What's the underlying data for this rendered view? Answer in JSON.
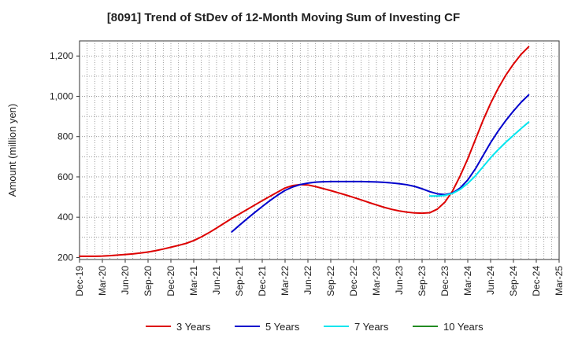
{
  "chart_data": {
    "type": "line",
    "title": "[8091]  Trend of StDev of 12-Month Moving Sum of Investing CF",
    "ylabel": "Amount (million yen)",
    "xlabel": "",
    "ylim": [
      190,
      1275
    ],
    "yticks": [
      200,
      400,
      600,
      800,
      1000,
      1200
    ],
    "ytick_labels": [
      "200",
      "400",
      "600",
      "800",
      "1,000",
      "1,200"
    ],
    "x_ticks": [
      "Dec-19",
      "Mar-20",
      "Jun-20",
      "Sep-20",
      "Dec-20",
      "Mar-21",
      "Jun-21",
      "Sep-21",
      "Dec-21",
      "Mar-22",
      "Jun-22",
      "Sep-22",
      "Dec-22",
      "Mar-23",
      "Jun-23",
      "Sep-23",
      "Dec-23",
      "Mar-24",
      "Jun-24",
      "Sep-24",
      "Dec-24",
      "Mar-25"
    ],
    "grid": true,
    "legend_position": "bottom",
    "series": [
      {
        "name": "3 Years",
        "color": "#dd0000",
        "points": [
          [
            0,
            206
          ],
          [
            1,
            206
          ],
          [
            2,
            206
          ],
          [
            3,
            207
          ],
          [
            4,
            209
          ],
          [
            5,
            212
          ],
          [
            6,
            215
          ],
          [
            7,
            218
          ],
          [
            8,
            222
          ],
          [
            9,
            227
          ],
          [
            10,
            234
          ],
          [
            11,
            242
          ],
          [
            12,
            251
          ],
          [
            13,
            260
          ],
          [
            14,
            270
          ],
          [
            15,
            284
          ],
          [
            16,
            302
          ],
          [
            17,
            323
          ],
          [
            18,
            346
          ],
          [
            19,
            370
          ],
          [
            20,
            394
          ],
          [
            21,
            416
          ],
          [
            22,
            438
          ],
          [
            23,
            460
          ],
          [
            24,
            482
          ],
          [
            25,
            503
          ],
          [
            26,
            524
          ],
          [
            27,
            545
          ],
          [
            28,
            557
          ],
          [
            29,
            562
          ],
          [
            30,
            560
          ],
          [
            31,
            552
          ],
          [
            32,
            542
          ],
          [
            33,
            532
          ],
          [
            34,
            521
          ],
          [
            35,
            510
          ],
          [
            36,
            498
          ],
          [
            37,
            486
          ],
          [
            38,
            473
          ],
          [
            39,
            461
          ],
          [
            40,
            449
          ],
          [
            41,
            439
          ],
          [
            42,
            431
          ],
          [
            43,
            425
          ],
          [
            44,
            421
          ],
          [
            45,
            420
          ],
          [
            46,
            422
          ],
          [
            47,
            440
          ],
          [
            48,
            475
          ],
          [
            49,
            530
          ],
          [
            50,
            605
          ],
          [
            51,
            690
          ],
          [
            52,
            785
          ],
          [
            53,
            880
          ],
          [
            54,
            965
          ],
          [
            55,
            1040
          ],
          [
            56,
            1105
          ],
          [
            57,
            1160
          ],
          [
            58,
            1208
          ],
          [
            59,
            1246
          ]
        ]
      },
      {
        "name": "5 Years",
        "color": "#0000cc",
        "points": [
          [
            20,
            327
          ],
          [
            21,
            360
          ],
          [
            22,
            392
          ],
          [
            23,
            423
          ],
          [
            24,
            453
          ],
          [
            25,
            482
          ],
          [
            26,
            509
          ],
          [
            27,
            533
          ],
          [
            28,
            550
          ],
          [
            29,
            562
          ],
          [
            30,
            569
          ],
          [
            31,
            574
          ],
          [
            32,
            576
          ],
          [
            33,
            577
          ],
          [
            34,
            577
          ],
          [
            35,
            577
          ],
          [
            36,
            577
          ],
          [
            37,
            577
          ],
          [
            38,
            576
          ],
          [
            39,
            575
          ],
          [
            40,
            573
          ],
          [
            41,
            570
          ],
          [
            42,
            566
          ],
          [
            43,
            561
          ],
          [
            44,
            553
          ],
          [
            45,
            541
          ],
          [
            46,
            527
          ],
          [
            47,
            516
          ],
          [
            48,
            512
          ],
          [
            49,
            520
          ],
          [
            50,
            545
          ],
          [
            51,
            585
          ],
          [
            52,
            640
          ],
          [
            53,
            705
          ],
          [
            54,
            770
          ],
          [
            55,
            828
          ],
          [
            56,
            880
          ],
          [
            57,
            927
          ],
          [
            58,
            970
          ],
          [
            59,
            1007
          ]
        ]
      },
      {
        "name": "7 Years",
        "color": "#00e5ee",
        "points": [
          [
            46,
            505
          ],
          [
            47,
            505
          ],
          [
            48,
            508
          ],
          [
            49,
            518
          ],
          [
            50,
            538
          ],
          [
            51,
            568
          ],
          [
            52,
            605
          ],
          [
            53,
            650
          ],
          [
            54,
            695
          ],
          [
            55,
            735
          ],
          [
            56,
            772
          ],
          [
            57,
            806
          ],
          [
            58,
            840
          ],
          [
            59,
            872
          ]
        ]
      },
      {
        "name": "10 Years",
        "color": "#228b22",
        "points": []
      }
    ]
  }
}
